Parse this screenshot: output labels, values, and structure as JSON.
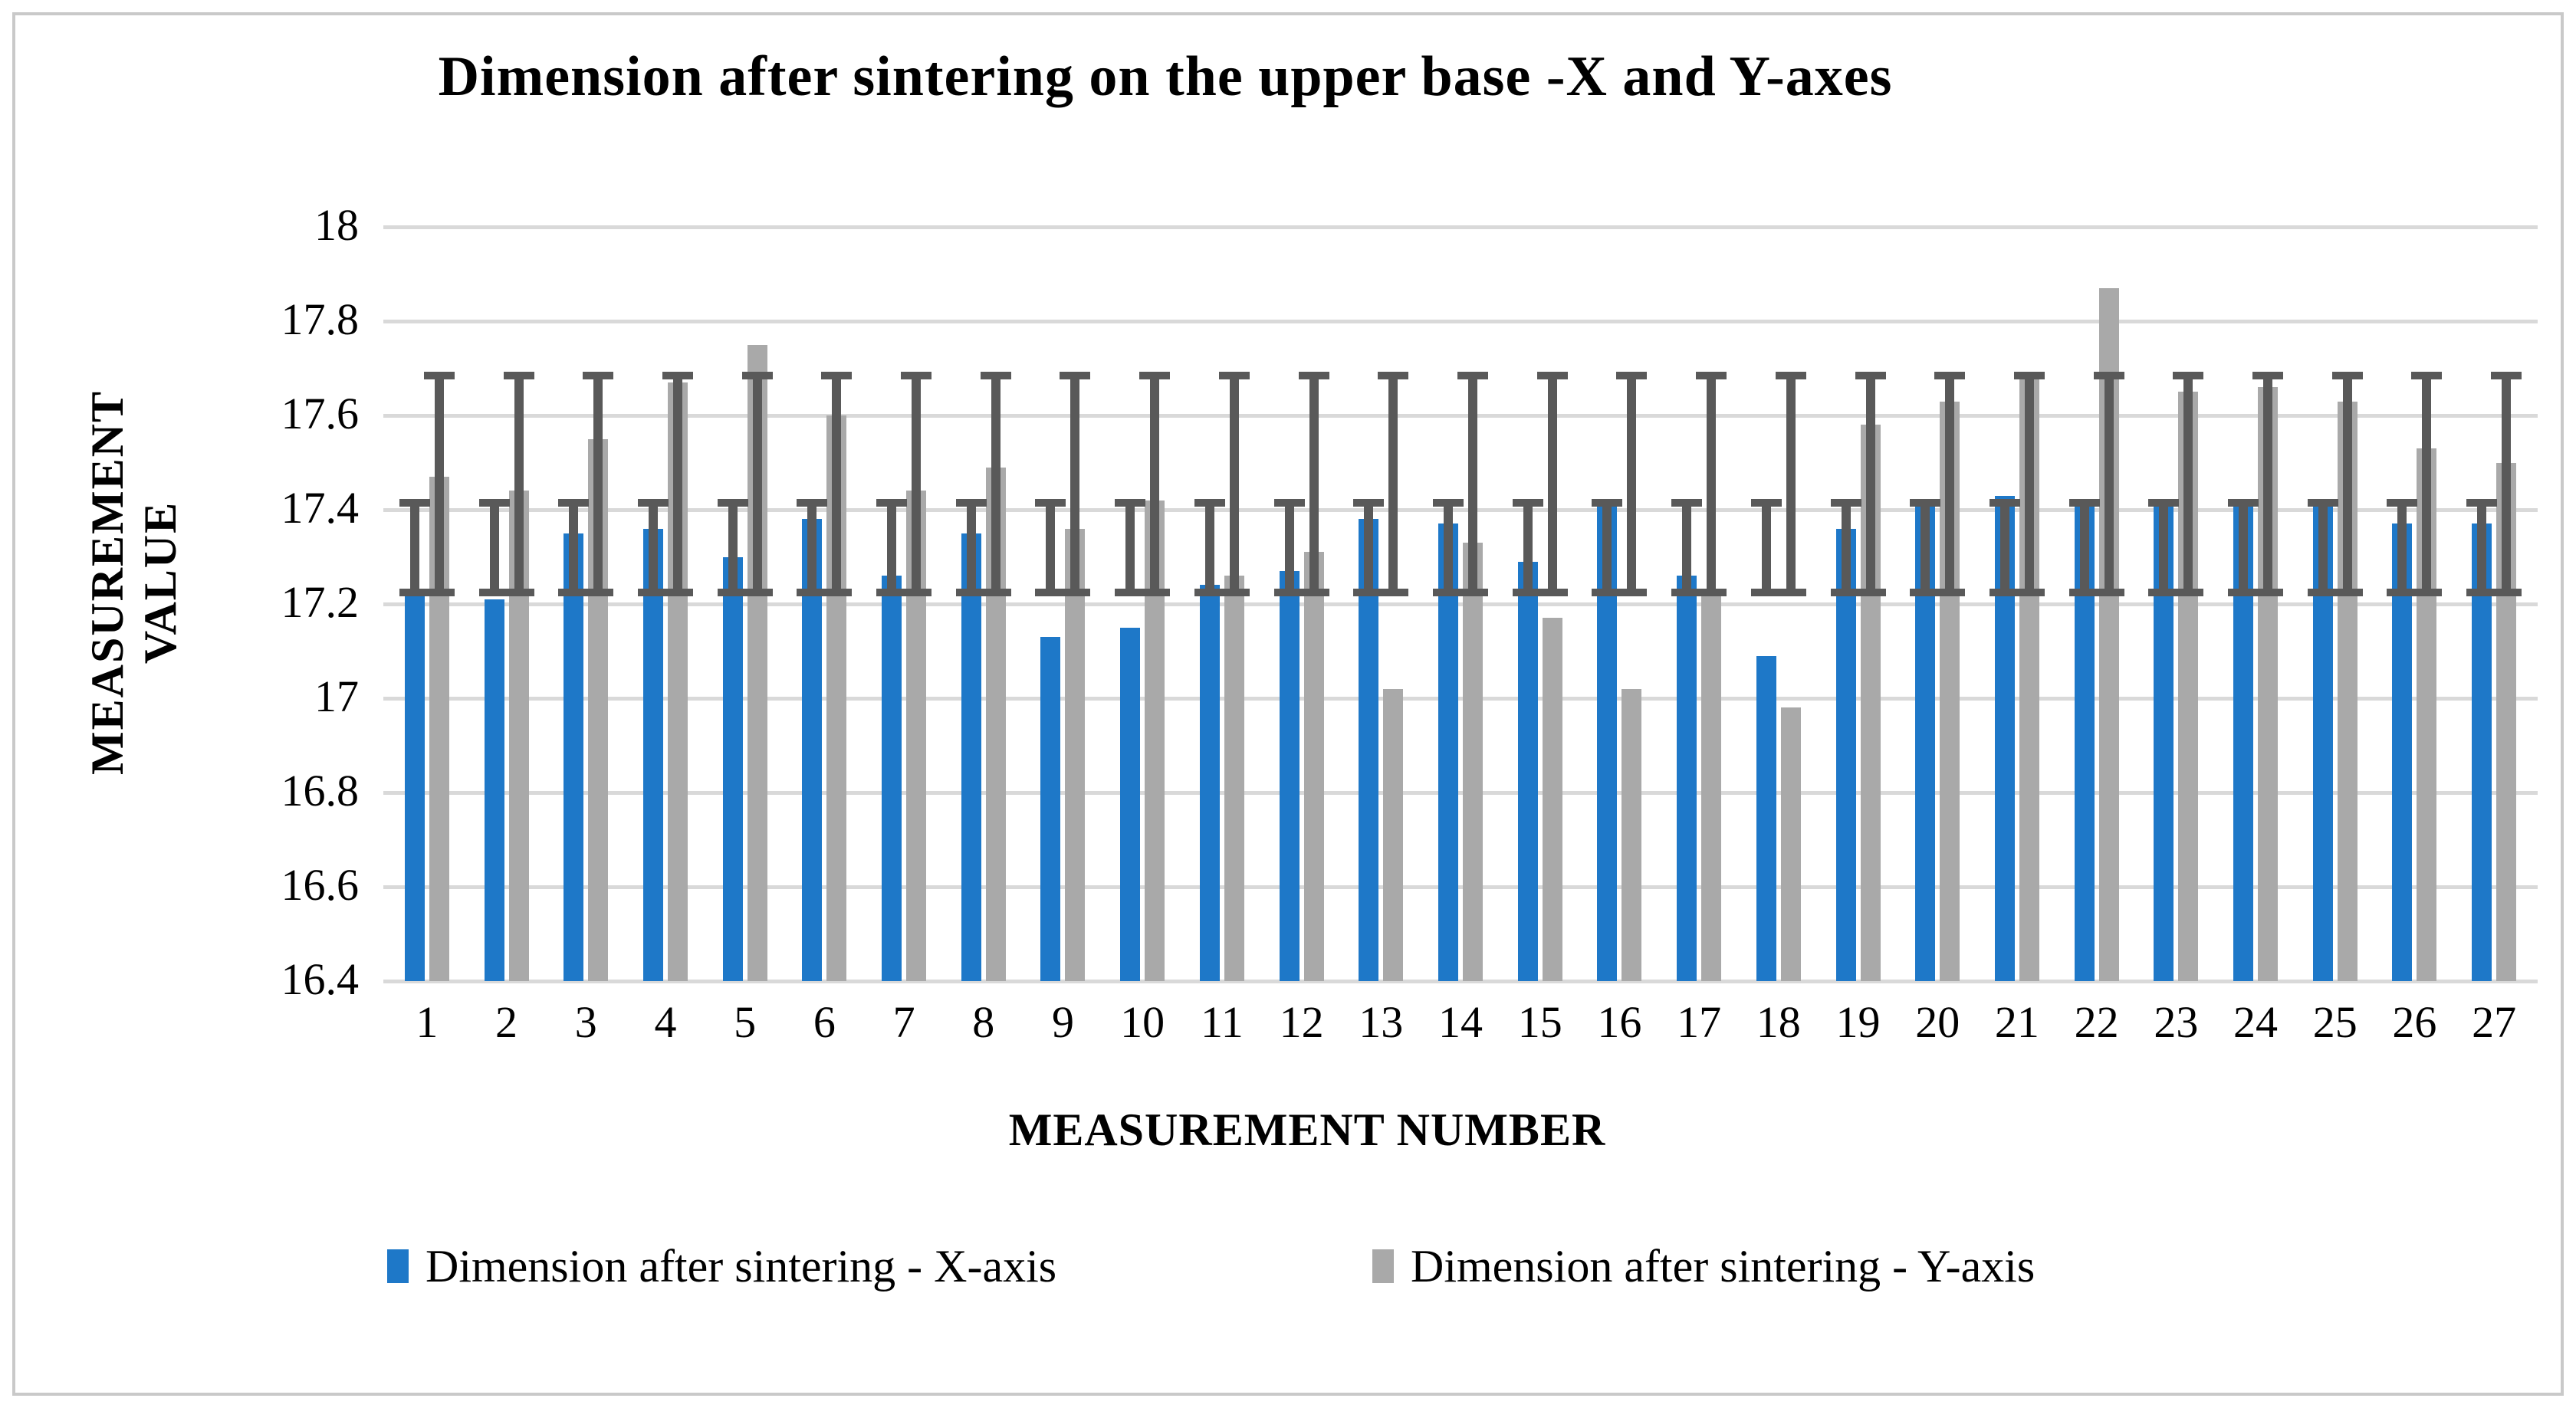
{
  "figure": {
    "background": "#ffffff",
    "border_color": "#c9c9c9"
  },
  "chart_data": {
    "type": "bar",
    "title": "Dimension after sintering on the upper base -X and Y-axes",
    "xlabel": "MEASUREMENT NUMBER",
    "ylabel": "MEASUREMENT VALUE",
    "ylabel_lines": [
      "MEASUREMENT",
      "VALUE"
    ],
    "categories": [
      "1",
      "2",
      "3",
      "4",
      "5",
      "6",
      "7",
      "8",
      "9",
      "10",
      "11",
      "12",
      "13",
      "14",
      "15",
      "16",
      "17",
      "18",
      "19",
      "20",
      "21",
      "22",
      "23",
      "24",
      "25",
      "26",
      "27"
    ],
    "series": [
      {
        "name": "Dimension after sintering - X-axis",
        "color": "#1e78c8",
        "values": [
          17.22,
          17.21,
          17.35,
          17.36,
          17.3,
          17.38,
          17.26,
          17.35,
          17.13,
          17.15,
          17.24,
          17.27,
          17.38,
          17.37,
          17.29,
          17.41,
          17.26,
          17.09,
          17.36,
          17.41,
          17.43,
          17.41,
          17.41,
          17.42,
          17.41,
          17.37,
          17.37
        ],
        "error_bar": {
          "from": 17.225,
          "to": 17.415
        }
      },
      {
        "name": "Dimension after sintering - Y-axis",
        "color": "#a9a9a9",
        "values": [
          17.47,
          17.44,
          17.55,
          17.67,
          17.75,
          17.6,
          17.44,
          17.49,
          17.36,
          17.42,
          17.26,
          17.31,
          17.02,
          17.33,
          17.17,
          17.02,
          17.22,
          16.98,
          17.58,
          17.63,
          17.69,
          17.87,
          17.65,
          17.66,
          17.63,
          17.53,
          17.5
        ],
        "error_bar": {
          "from": 17.225,
          "to": 17.685
        }
      }
    ],
    "ylim": [
      16.4,
      18
    ],
    "ytick_step": 0.2,
    "yticks_labels": [
      "18",
      "17.8",
      "17.6",
      "17.4",
      "17.2",
      "17",
      "16.8",
      "16.6",
      "16.4"
    ],
    "grid": true,
    "gridline_color": "#d9d9d9",
    "error_bar_color": "#595959",
    "legend_position": "bottom"
  }
}
